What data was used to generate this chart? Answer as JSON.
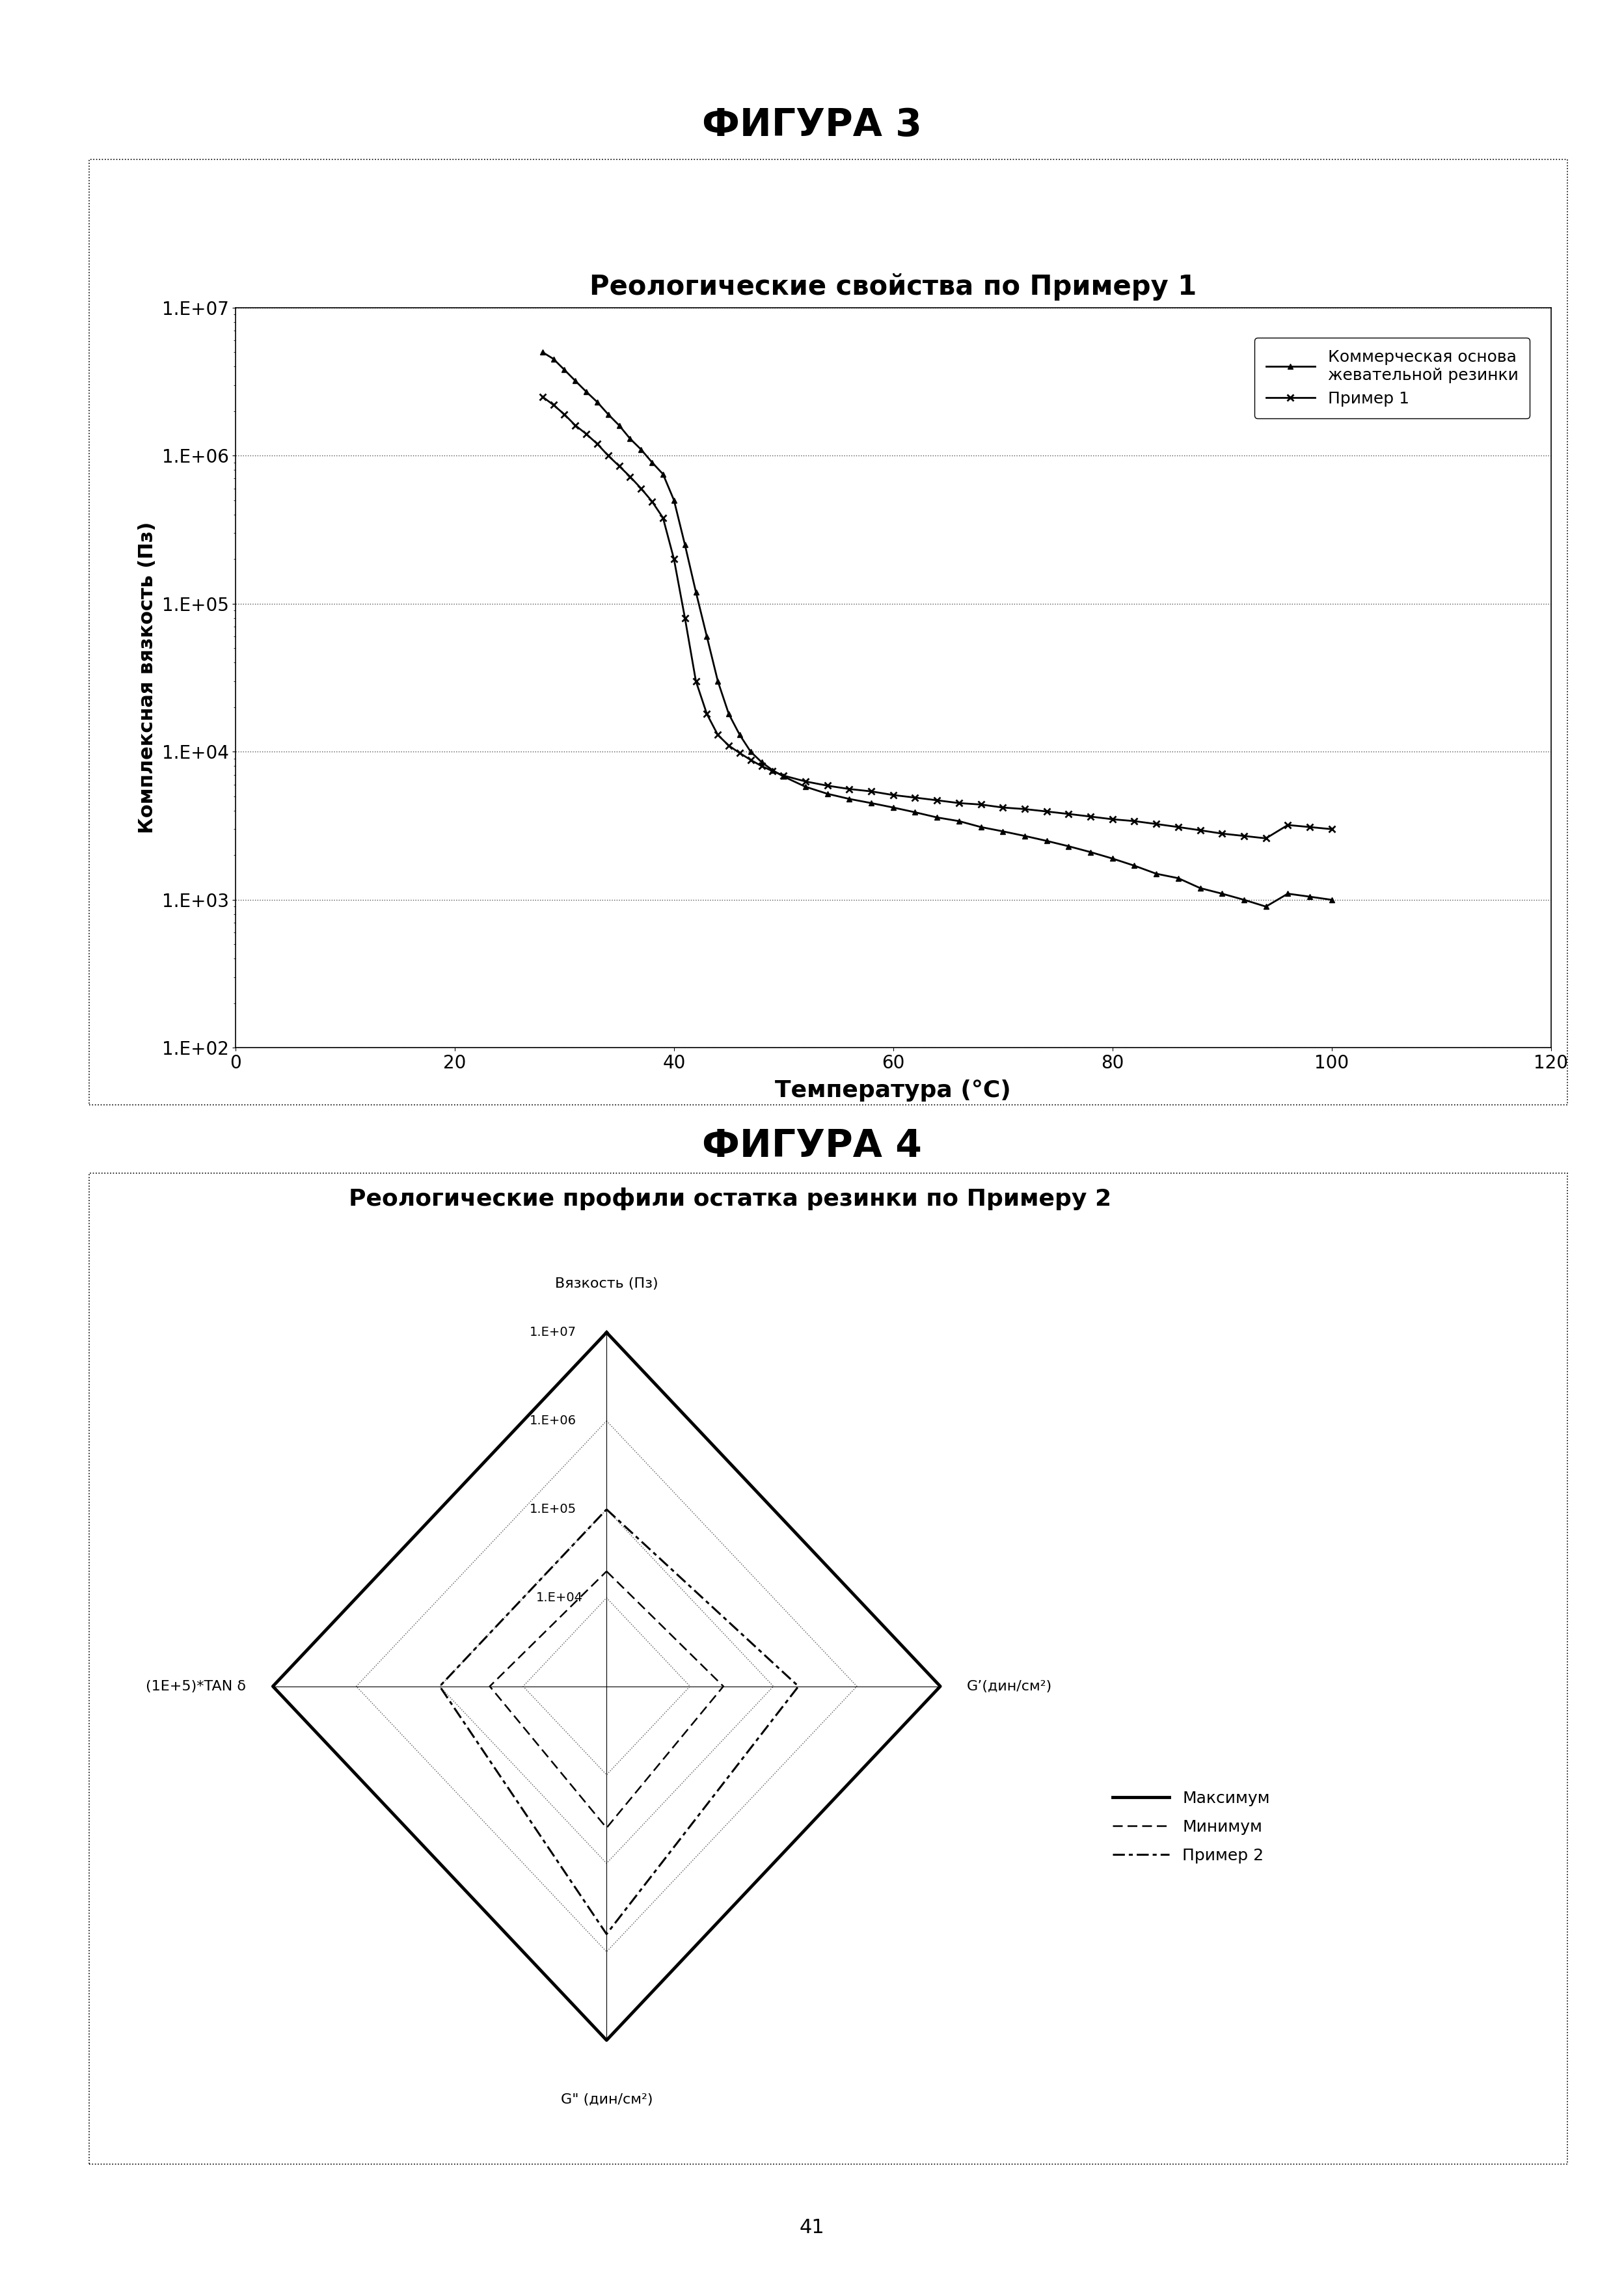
{
  "fig3_title": "ФИГУРА 3",
  "fig4_title": "ФИГУРА 4",
  "chart1_title": "Реологические свойства по Примеру 1",
  "chart1_xlabel": "Температура (°C)",
  "chart1_ylabel": "Комплексная вязкость (Пз)",
  "chart1_xlim": [
    0,
    120
  ],
  "chart1_yticks": [
    100,
    1000,
    10000,
    100000,
    1000000,
    10000000
  ],
  "chart1_ytick_labels": [
    "1.E+02",
    "1.E+03",
    "1.E+04",
    "1.E+05",
    "1.E+06",
    "1.E+07"
  ],
  "chart1_xticks": [
    0,
    20,
    40,
    60,
    80,
    100,
    120
  ],
  "legend1_label_comm": "Коммерческая основа\nжевательной резинки",
  "legend1_label_prim": "Пример 1",
  "comm_x": [
    28,
    29,
    30,
    31,
    32,
    33,
    34,
    35,
    36,
    37,
    38,
    39,
    40,
    41,
    42,
    43,
    44,
    45,
    46,
    47,
    48,
    49,
    50,
    52,
    54,
    56,
    58,
    60,
    62,
    64,
    66,
    68,
    70,
    72,
    74,
    76,
    78,
    80,
    82,
    84,
    86,
    88,
    90,
    92,
    94,
    96,
    98,
    100
  ],
  "comm_y": [
    5000000,
    4500000,
    3800000,
    3200000,
    2700000,
    2300000,
    1900000,
    1600000,
    1300000,
    1100000,
    900000,
    750000,
    500000,
    250000,
    120000,
    60000,
    30000,
    18000,
    13000,
    10000,
    8500,
    7500,
    6800,
    5800,
    5200,
    4800,
    4500,
    4200,
    3900,
    3600,
    3400,
    3100,
    2900,
    2700,
    2500,
    2300,
    2100,
    1900,
    1700,
    1500,
    1400,
    1200,
    1100,
    1000,
    900,
    1100,
    1050,
    1000
  ],
  "prim_x": [
    28,
    29,
    30,
    31,
    32,
    33,
    34,
    35,
    36,
    37,
    38,
    39,
    40,
    41,
    42,
    43,
    44,
    45,
    46,
    47,
    48,
    49,
    50,
    52,
    54,
    56,
    58,
    60,
    62,
    64,
    66,
    68,
    70,
    72,
    74,
    76,
    78,
    80,
    82,
    84,
    86,
    88,
    90,
    92,
    94,
    96,
    98,
    100
  ],
  "prim_y": [
    2500000,
    2200000,
    1900000,
    1600000,
    1400000,
    1200000,
    1000000,
    850000,
    720000,
    600000,
    490000,
    380000,
    200000,
    80000,
    30000,
    18000,
    13000,
    11000,
    9800,
    8800,
    8000,
    7400,
    6900,
    6300,
    5900,
    5600,
    5400,
    5100,
    4900,
    4700,
    4500,
    4400,
    4200,
    4100,
    3950,
    3800,
    3650,
    3500,
    3400,
    3250,
    3100,
    2950,
    2800,
    2700,
    2600,
    3200,
    3100,
    3000
  ],
  "chart2_title": "Реологические профили остатка резинки по Примеру 2",
  "radar_level_labels": [
    "1.E+04",
    "1.E+05",
    "1.E+06",
    "1.E+07"
  ],
  "radar_axis_top": "Вязкость (Пз)",
  "radar_axis_right": "G’(дин/см²)",
  "radar_axis_bottom": "G\" (дин/см²)",
  "radar_axis_left": "(1E+5)*TAN δ",
  "max_vals": [
    4.0,
    4.0,
    4.0,
    4.0
  ],
  "min_vals": [
    1.3,
    1.4,
    1.6,
    1.4
  ],
  "prim2_vals": [
    2.0,
    2.3,
    2.8,
    2.0
  ],
  "legend2_labels": [
    "Максимум",
    "Минимум",
    "Пример 2"
  ],
  "bg_color": "#ffffff",
  "page_number": "41"
}
